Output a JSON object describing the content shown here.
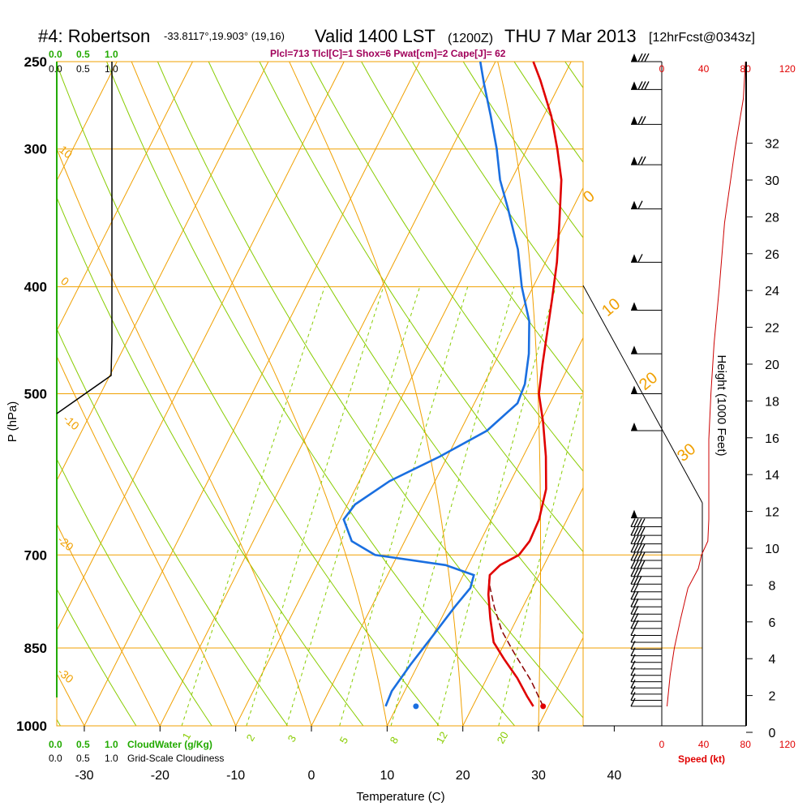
{
  "header": {
    "station": "#4: Robertson",
    "coords": "-33.8117°,19.903° (19,16)",
    "valid": "Valid 1400 LST",
    "utc": "(1200Z)",
    "date": "THU 7 Mar 2013",
    "forecast": "[12hrFcst@0343z]",
    "params": "Plcl=713 Tlcl[C]=1 Shox=6 Pwat[cm]=2 Cape[J]= 62"
  },
  "colors": {
    "isotherm": "#f0a000",
    "dry_adiabat": "#88cc00",
    "mixing_ratio": "#88cc00",
    "temperature": "#e00000",
    "dewpoint": "#1a6fe0",
    "cloud_water": "#22aa00",
    "wind_speed": "#cc0000"
  },
  "legend": {
    "cloudwater_label": "CloudWater (g/Kg)",
    "cloudiness_label": "Grid-Scale Cloudiness",
    "cloudwater_ticks": [
      "0.0",
      "0.5",
      "1.0"
    ],
    "cloudiness_ticks": [
      "0.0",
      "0.5",
      "1.0"
    ],
    "speed_label": "Speed (kt)"
  },
  "chart_data": {
    "type": "line",
    "subtype": "skew-T log-P",
    "xlabel": "Temperature (C)",
    "ylabel": "P (hPa)",
    "y2label": "Height (1000 Feet)",
    "x_ticks": [
      "-30",
      "-20",
      "-10",
      "0",
      "10",
      "20",
      "30",
      "40"
    ],
    "p_ticks": [
      "250",
      "300",
      "400",
      "500",
      "700",
      "850",
      "1000"
    ],
    "height_ticks": [
      "0",
      "2",
      "4",
      "6",
      "8",
      "10",
      "12",
      "14",
      "16",
      "18",
      "20",
      "22",
      "24",
      "26",
      "28",
      "30",
      "32"
    ],
    "speed_ticks": [
      "0",
      "40",
      "80",
      "120"
    ],
    "adiabat_labels": [
      "10",
      "0",
      "-10",
      "-20",
      "-30"
    ],
    "theta_e_labels": [
      "0",
      "10",
      "20",
      "30"
    ],
    "mixing_ratio_labels": [
      "1",
      "2",
      "3",
      "5",
      "8",
      "12",
      "20"
    ],
    "series": [
      {
        "name": "Temperature",
        "points": [
          [
            28.0,
            960
          ],
          [
            26.5,
            940
          ],
          [
            24.0,
            905
          ],
          [
            21.0,
            870
          ],
          [
            18.5,
            840
          ],
          [
            16.5,
            800
          ],
          [
            14.6,
            760
          ],
          [
            13.5,
            730
          ],
          [
            14.2,
            715
          ],
          [
            16.0,
            700
          ],
          [
            16.5,
            680
          ],
          [
            16.3,
            650
          ],
          [
            15.2,
            610
          ],
          [
            13.0,
            570
          ],
          [
            10.3,
            530
          ],
          [
            7.9,
            500
          ],
          [
            6.4,
            470
          ],
          [
            4.9,
            440
          ],
          [
            3.3,
            410
          ],
          [
            1.5,
            380
          ],
          [
            -0.8,
            350
          ],
          [
            -3.4,
            320
          ],
          [
            -6.0,
            300
          ],
          [
            -9.0,
            280
          ],
          [
            -12.8,
            260
          ],
          [
            -15.0,
            250
          ]
        ]
      },
      {
        "name": "Dewpoint",
        "points": [
          [
            8.5,
            960
          ],
          [
            8.3,
            930
          ],
          [
            9.0,
            880
          ],
          [
            10.0,
            830
          ],
          [
            11.0,
            780
          ],
          [
            11.8,
            750
          ],
          [
            11.4,
            730
          ],
          [
            7.0,
            715
          ],
          [
            -3.0,
            700
          ],
          [
            -7.0,
            680
          ],
          [
            -9.5,
            650
          ],
          [
            -9.0,
            630
          ],
          [
            -6.0,
            600
          ],
          [
            -1.0,
            570
          ],
          [
            3.5,
            540
          ],
          [
            5.7,
            510
          ],
          [
            5.4,
            490
          ],
          [
            3.9,
            460
          ],
          [
            1.8,
            430
          ],
          [
            -1.5,
            400
          ],
          [
            -4.5,
            370
          ],
          [
            -8.5,
            340
          ],
          [
            -11.5,
            320
          ],
          [
            -14.0,
            300
          ],
          [
            -17.0,
            280
          ],
          [
            -20.0,
            262
          ],
          [
            -22.0,
            250
          ]
        ]
      },
      {
        "name": "Parcel",
        "points": [
          [
            29.3,
            960
          ],
          [
            26.0,
            910
          ],
          [
            22.0,
            860
          ],
          [
            18.8,
            820
          ],
          [
            16.2,
            780
          ],
          [
            13.8,
            740
          ],
          [
            13.5,
            730
          ]
        ]
      }
    ],
    "surface_temp": 29.3,
    "surface_dewpoint": 12.5,
    "surface_pressure": 960,
    "wind_speed_profile": [
      [
        5,
        960
      ],
      [
        8,
        900
      ],
      [
        12,
        850
      ],
      [
        18,
        800
      ],
      [
        25,
        750
      ],
      [
        35,
        720
      ],
      [
        38,
        700
      ],
      [
        44,
        680
      ],
      [
        45,
        650
      ],
      [
        45,
        600
      ],
      [
        45,
        550
      ],
      [
        47,
        500
      ],
      [
        50,
        450
      ],
      [
        55,
        400
      ],
      [
        60,
        350
      ],
      [
        70,
        300
      ],
      [
        78,
        270
      ],
      [
        80,
        250
      ]
    ],
    "xlim": [
      -35,
      45
    ],
    "ylim": [
      1000,
      250
    ]
  }
}
